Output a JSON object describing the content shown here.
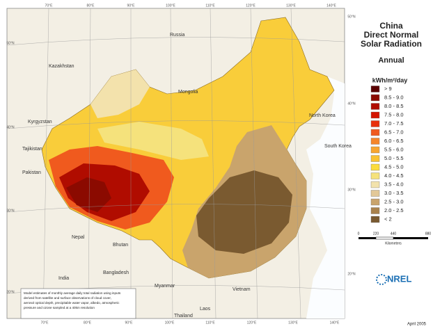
{
  "title_lines": [
    "China",
    "Direct Normal",
    "Solar Radiation"
  ],
  "subtitle": "Annual",
  "legend": {
    "unit": "kWh/m²/day",
    "items": [
      {
        "label": "> 9",
        "color": "#5a0000"
      },
      {
        "label": "8.5 - 9.0",
        "color": "#8b0a00"
      },
      {
        "label": "8.0 - 8.5",
        "color": "#b00c00"
      },
      {
        "label": "7.5 - 8.0",
        "color": "#d41400"
      },
      {
        "label": "7.0 - 7.5",
        "color": "#e8300c"
      },
      {
        "label": "6.5 - 7.0",
        "color": "#f05a1e"
      },
      {
        "label": "6.0 - 6.5",
        "color": "#f5862a"
      },
      {
        "label": "5.5 - 6.0",
        "color": "#f7a530"
      },
      {
        "label": "5.0 - 5.5",
        "color": "#f9c232"
      },
      {
        "label": "4.5 - 5.0",
        "color": "#fbdc3c"
      },
      {
        "label": "4.0 - 4.5",
        "color": "#f5e27c"
      },
      {
        "label": "3.5 - 4.0",
        "color": "#f2e2ac"
      },
      {
        "label": "3.0 - 3.5",
        "color": "#e2c898"
      },
      {
        "label": "2.5 - 3.0",
        "color": "#c9a46c"
      },
      {
        "label": "2.0 - 2.5",
        "color": "#a9824c"
      },
      {
        "label": "< 2",
        "color": "#7a5a30"
      }
    ]
  },
  "countries": [
    "Russia",
    "Kazakhstan",
    "Mongolia",
    "Kyrgyzstan",
    "Tajikistan",
    "Pakistan",
    "Nepal",
    "Bhutan",
    "India",
    "Bangladesh",
    "Myanmar",
    "Thailand",
    "Laos",
    "Vietnam",
    "North Korea",
    "South Korea"
  ],
  "longitudes": [
    "70°E",
    "80°E",
    "90°E",
    "100°E",
    "110°E",
    "120°E",
    "130°E",
    "140°E"
  ],
  "latitudes": [
    "50°N",
    "40°N",
    "30°N",
    "20°N"
  ],
  "scale": {
    "ticks": [
      "0",
      "220",
      "440",
      "880"
    ],
    "unit": "Kilometers"
  },
  "note": [
    "Model estimates of monthly average daily total radiation using inputs",
    "derived from satellite and surface observations of cloud cover,",
    "aerosol optical depth, precipitable water vapor, albedo, atmospheric",
    "pressure and ozone sampled at a 40km resolution"
  ],
  "logo": "NREL",
  "date": "April 2005"
}
